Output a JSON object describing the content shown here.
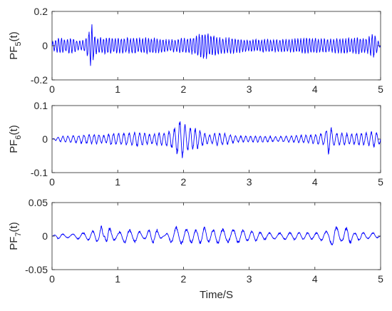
{
  "chart_data": [
    {
      "type": "line",
      "ylabel": {
        "main": "PF",
        "sub": "5",
        "suffix": "(t)"
      },
      "xlabel": "",
      "xlim": [
        0,
        5
      ],
      "ylim": [
        -0.2,
        0.2
      ],
      "xticks": [
        "0",
        "1",
        "2",
        "3",
        "4",
        "5"
      ],
      "yticks": [
        {
          "value": 0.2,
          "label": "0.2"
        },
        {
          "value": 0,
          "label": "0"
        },
        {
          "value": -0.2,
          "label": "-0.2"
        }
      ],
      "grid": false,
      "color": "#0000ff",
      "series": [
        {
          "x": [
            0,
            0.05,
            0.1,
            0.15,
            0.2,
            0.25,
            0.3,
            0.35,
            0.4,
            0.45,
            0.5,
            0.55,
            0.58,
            0.6,
            0.65,
            0.7,
            0.75,
            0.8,
            0.85,
            0.9,
            0.95,
            1.0,
            1.1,
            1.2,
            1.3,
            1.4,
            1.5,
            1.6,
            1.7,
            1.8,
            1.9,
            2.0,
            2.1,
            2.2,
            2.3,
            2.35,
            2.4,
            2.5,
            2.6,
            2.7,
            2.8,
            2.9,
            3.0,
            3.2,
            3.4,
            3.6,
            3.8,
            4.0,
            4.2,
            4.4,
            4.6,
            4.8,
            4.9,
            5.0
          ],
          "y": [
            0.02,
            -0.04,
            0.05,
            -0.05,
            0.04,
            -0.05,
            0.05,
            -0.04,
            0.03,
            -0.03,
            0.04,
            -0.08,
            0.13,
            -0.14,
            0.06,
            -0.05,
            0.05,
            -0.05,
            0.05,
            -0.05,
            0.05,
            -0.05,
            0.05,
            -0.05,
            0.05,
            -0.05,
            0.05,
            -0.05,
            0.04,
            -0.04,
            0.04,
            -0.05,
            0.05,
            -0.06,
            0.09,
            -0.08,
            0.07,
            -0.06,
            0.05,
            -0.05,
            0.05,
            -0.04,
            0.04,
            -0.04,
            0.04,
            -0.04,
            0.05,
            -0.05,
            0.04,
            -0.05,
            0.05,
            -0.05,
            0.08,
            0.0
          ]
        }
      ]
    },
    {
      "type": "line",
      "ylabel": {
        "main": "PF",
        "sub": "6",
        "suffix": "(t)"
      },
      "xlabel": "",
      "xlim": [
        0,
        5
      ],
      "ylim": [
        -0.1,
        0.1
      ],
      "xticks": [
        "0",
        "1",
        "2",
        "3",
        "4",
        "5"
      ],
      "yticks": [
        {
          "value": 0.1,
          "label": "0.1"
        },
        {
          "value": 0,
          "label": "0"
        },
        {
          "value": -0.1,
          "label": "-0.1"
        }
      ],
      "grid": false,
      "color": "#0000ff",
      "series": [
        {
          "x": [
            0,
            0.1,
            0.2,
            0.3,
            0.4,
            0.5,
            0.6,
            0.7,
            0.8,
            0.9,
            1.0,
            1.1,
            1.2,
            1.3,
            1.4,
            1.5,
            1.6,
            1.7,
            1.8,
            1.85,
            1.9,
            1.95,
            2.0,
            2.05,
            2.1,
            2.2,
            2.3,
            2.4,
            2.5,
            2.6,
            2.8,
            3.0,
            3.2,
            3.4,
            3.6,
            3.8,
            4.0,
            4.1,
            4.15,
            4.2,
            4.25,
            4.3,
            4.4,
            4.5,
            4.6,
            4.7,
            4.8,
            4.9,
            5.0
          ],
          "y": [
            0.0,
            0.008,
            -0.01,
            0.012,
            -0.012,
            0.015,
            -0.015,
            0.015,
            -0.012,
            0.02,
            -0.018,
            0.02,
            -0.02,
            0.025,
            -0.02,
            0.015,
            -0.02,
            0.02,
            -0.03,
            0.03,
            -0.05,
            0.068,
            -0.055,
            0.035,
            -0.04,
            0.035,
            -0.02,
            0.015,
            -0.02,
            0.02,
            -0.01,
            0.01,
            -0.01,
            0.008,
            -0.01,
            0.012,
            -0.015,
            0.02,
            -0.018,
            0.048,
            -0.035,
            0.02,
            -0.02,
            0.018,
            -0.018,
            0.02,
            -0.02,
            0.025,
            -0.015
          ]
        }
      ]
    },
    {
      "type": "line",
      "ylabel": {
        "main": "PF",
        "sub": "7",
        "suffix": "(t)"
      },
      "xlabel": "Time/S",
      "xlim": [
        0,
        5
      ],
      "ylim": [
        -0.05,
        0.05
      ],
      "xticks": [
        "0",
        "1",
        "2",
        "3",
        "4",
        "5"
      ],
      "yticks": [
        {
          "value": 0.05,
          "label": "0.05"
        },
        {
          "value": 0,
          "label": "0"
        },
        {
          "value": -0.05,
          "label": "-0.05"
        }
      ],
      "grid": false,
      "color": "#0000ff",
      "series": [
        {
          "x": [
            0,
            0.1,
            0.2,
            0.3,
            0.4,
            0.5,
            0.6,
            0.7,
            0.75,
            0.8,
            0.85,
            0.9,
            1.0,
            1.1,
            1.2,
            1.3,
            1.4,
            1.5,
            1.6,
            1.7,
            1.8,
            1.9,
            2.0,
            2.1,
            2.2,
            2.3,
            2.4,
            2.5,
            2.6,
            2.7,
            2.8,
            2.9,
            3.0,
            3.1,
            3.2,
            3.4,
            3.6,
            3.8,
            4.0,
            4.1,
            4.2,
            4.25,
            4.3,
            4.4,
            4.5,
            4.6,
            4.7,
            4.8,
            4.9,
            5.0
          ],
          "y": [
            0.0,
            0.005,
            -0.003,
            0.003,
            -0.005,
            0.006,
            -0.008,
            0.01,
            0.018,
            0.0,
            -0.02,
            -0.01,
            0.005,
            0.012,
            -0.01,
            0.01,
            0.004,
            -0.012,
            0.01,
            0.0,
            -0.01,
            0.015,
            -0.012,
            0.012,
            -0.01,
            0.015,
            -0.01,
            0.012,
            -0.012,
            0.01,
            -0.012,
            0.01,
            -0.008,
            0.008,
            -0.006,
            0.005,
            -0.006,
            0.006,
            -0.005,
            0.008,
            -0.008,
            0.015,
            -0.02,
            0.008,
            0.016,
            -0.005,
            0.008,
            -0.004,
            0.006,
            0.0
          ]
        }
      ]
    }
  ]
}
